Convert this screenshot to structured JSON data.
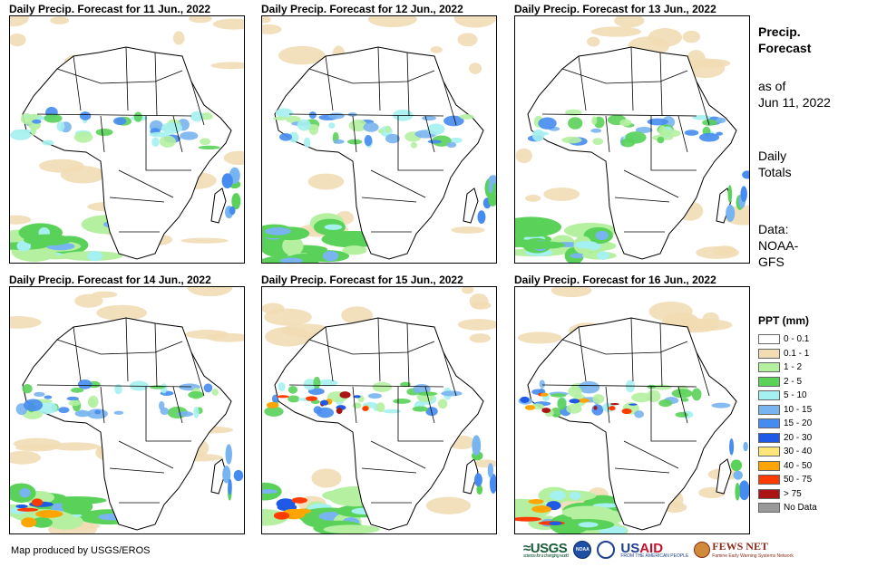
{
  "panels": [
    {
      "title": "Daily Precip. Forecast for 11 Jun., 2022"
    },
    {
      "title": "Daily Precip. Forecast for 12 Jun., 2022"
    },
    {
      "title": "Daily Precip. Forecast for 13 Jun., 2022"
    },
    {
      "title": "Daily Precip. Forecast for 14 Jun., 2022"
    },
    {
      "title": "Daily Precip. Forecast for 15 Jun., 2022"
    },
    {
      "title": "Daily Precip. Forecast for 16 Jun., 2022"
    }
  ],
  "sidebar": {
    "title_line1": "Precip.",
    "title_line2": "Forecast",
    "asof_line1": "as of",
    "asof_line2": "Jun 11, 2022",
    "totals_line1": "Daily",
    "totals_line2": "Totals",
    "data_line1": "Data:",
    "data_line2": "NOAA-",
    "data_line3": "GFS"
  },
  "legend": {
    "title": "PPT (mm)",
    "items": [
      {
        "label": "0 - 0.1",
        "color": "#ffffff"
      },
      {
        "label": "0.1 - 1",
        "color": "#f1dcb4"
      },
      {
        "label": "1 - 2",
        "color": "#b4f0a0"
      },
      {
        "label": "2 - 5",
        "color": "#5ad25a"
      },
      {
        "label": "5 - 10",
        "color": "#a5f0f0"
      },
      {
        "label": "10 - 15",
        "color": "#78b4f0"
      },
      {
        "label": "15 - 20",
        "color": "#468cf0"
      },
      {
        "label": "20 - 30",
        "color": "#1e5ae6"
      },
      {
        "label": "30 - 40",
        "color": "#ffe678"
      },
      {
        "label": "40 - 50",
        "color": "#ffa500"
      },
      {
        "label": "50 - 75",
        "color": "#ff3c00"
      },
      {
        "label": "> 75",
        "color": "#aa1414"
      },
      {
        "label": "No Data",
        "color": "#999999"
      }
    ]
  },
  "credit": "Map produced by USGS/EROS",
  "logos": {
    "usgs": "USGS",
    "usgs_tag": "science for a changing world",
    "noaa": "NOAA",
    "usaid_us": "US",
    "usaid_aid": "AID",
    "usaid_tag": "FROM THE AMERICAN PEOPLE",
    "fews": "FEWS NET",
    "fews_tag": "Famine Early Warning Systems Network"
  }
}
